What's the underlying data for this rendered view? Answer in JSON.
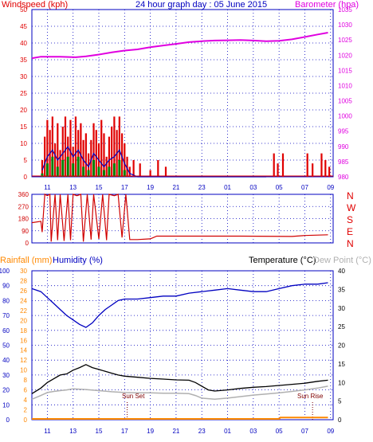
{
  "colors": {
    "wind": "#e00000",
    "gust": "#e00000",
    "avg": "#0000c0",
    "dir": "#d00000",
    "baro": "#e000e0",
    "temp": "#000000",
    "dew": "#b0b0b0",
    "hum": "#0000c0",
    "rain": "#ff8800",
    "frame": "#0000c0",
    "grid": "#0000c0",
    "note": "#800000"
  },
  "header": {
    "windspeed": "Windspeed (kph)",
    "title": "24 hour graph day : 05 June 2015",
    "barometer": "Barometer (hpa)"
  },
  "lower_header": {
    "rainfall": "Rainfall (mm)",
    "humidity": "Humidity (%)",
    "temperature": "Temperature (°C)",
    "dewpoint": "Dew Point (°C)"
  },
  "directions": [
    "N",
    "W",
    "S",
    "E",
    "N"
  ],
  "annotations": {
    "sunset": "Sun Set",
    "sunrise": "Sun Rise"
  },
  "chart_data": [
    {
      "type": "bar",
      "name": "wind",
      "x_ticks": [
        "11",
        "13",
        "15",
        "17",
        "19",
        "21",
        "23",
        "01",
        "03",
        "05",
        "07",
        "09"
      ],
      "y_left_ticks": [
        "0",
        "5",
        "10",
        "15",
        "20",
        "25",
        "30",
        "35",
        "40",
        "45",
        "50"
      ],
      "y_right_ticks": [
        "980",
        "985",
        "990",
        "995",
        "1000",
        "1005",
        "1010",
        "1015",
        "1020",
        "1025",
        "1030",
        "1035"
      ],
      "ylim_left": [
        0,
        50
      ],
      "ylim_right": [
        980,
        1035
      ],
      "gust": [
        [
          10.6,
          5
        ],
        [
          10.8,
          12
        ],
        [
          11,
          17
        ],
        [
          11.2,
          14
        ],
        [
          11.4,
          18
        ],
        [
          11.6,
          10
        ],
        [
          11.8,
          16
        ],
        [
          12,
          8
        ],
        [
          12.2,
          15
        ],
        [
          12.4,
          18
        ],
        [
          12.6,
          12
        ],
        [
          12.8,
          17
        ],
        [
          13,
          9
        ],
        [
          13.2,
          18
        ],
        [
          13.4,
          14
        ],
        [
          13.6,
          16
        ],
        [
          13.8,
          11
        ],
        [
          14,
          13
        ],
        [
          14.2,
          7
        ],
        [
          14.4,
          11
        ],
        [
          14.6,
          16
        ],
        [
          14.8,
          14
        ],
        [
          15,
          10
        ],
        [
          15.2,
          17
        ],
        [
          15.4,
          13
        ],
        [
          15.6,
          6
        ],
        [
          15.8,
          12
        ],
        [
          16,
          15
        ],
        [
          16.2,
          18
        ],
        [
          16.4,
          14
        ],
        [
          16.6,
          18
        ],
        [
          16.8,
          13
        ],
        [
          17,
          10
        ],
        [
          17.2,
          6
        ],
        [
          17.4,
          3
        ],
        [
          17.7,
          5
        ],
        [
          18.2,
          4
        ],
        [
          19,
          2
        ],
        [
          19.6,
          5
        ],
        [
          20.2,
          3
        ],
        [
          28.6,
          7
        ],
        [
          28.9,
          4
        ],
        [
          29.3,
          7
        ],
        [
          31.2,
          7
        ],
        [
          31.6,
          4
        ],
        [
          32.3,
          7
        ],
        [
          32.6,
          5
        ],
        [
          32.9,
          3
        ]
      ],
      "avg": [
        [
          10.6,
          2
        ],
        [
          11,
          6
        ],
        [
          11.4,
          8
        ],
        [
          11.8,
          5
        ],
        [
          12.2,
          7
        ],
        [
          12.6,
          9
        ],
        [
          13,
          6
        ],
        [
          13.4,
          8
        ],
        [
          13.8,
          5
        ],
        [
          14.2,
          3
        ],
        [
          14.6,
          7
        ],
        [
          15,
          5
        ],
        [
          15.4,
          3
        ],
        [
          15.8,
          5
        ],
        [
          16.2,
          6
        ],
        [
          16.6,
          8
        ],
        [
          17,
          4
        ],
        [
          17.4,
          1
        ],
        [
          18,
          0
        ],
        [
          28,
          0
        ]
      ],
      "avg_fill": [
        [
          10.6,
          1
        ],
        [
          11,
          4
        ],
        [
          11.4,
          6
        ],
        [
          11.8,
          3
        ],
        [
          12.2,
          5
        ],
        [
          12.6,
          6
        ],
        [
          13,
          4
        ],
        [
          13.4,
          6
        ],
        [
          13.8,
          3
        ],
        [
          14.2,
          2
        ],
        [
          14.6,
          5
        ],
        [
          15,
          3
        ],
        [
          15.4,
          2
        ],
        [
          15.8,
          3
        ],
        [
          16.2,
          4
        ],
        [
          16.6,
          5
        ],
        [
          17,
          2
        ],
        [
          17.4,
          0
        ]
      ],
      "barometer": [
        [
          9.8,
          1019
        ],
        [
          10.5,
          1019.5
        ],
        [
          12,
          1019.5
        ],
        [
          13.2,
          1019.3
        ],
        [
          14,
          1019.6
        ],
        [
          15,
          1020.2
        ],
        [
          16,
          1020.9
        ],
        [
          17,
          1021.5
        ],
        [
          18,
          1021.9
        ],
        [
          19,
          1022.6
        ],
        [
          20,
          1023.2
        ],
        [
          21,
          1023.7
        ],
        [
          22,
          1024.3
        ],
        [
          23,
          1024.6
        ],
        [
          24,
          1024.8
        ],
        [
          25,
          1024.9
        ],
        [
          26,
          1025
        ],
        [
          27,
          1024.8
        ],
        [
          28,
          1024.6
        ],
        [
          29,
          1024.7
        ],
        [
          30,
          1025.2
        ],
        [
          31,
          1026
        ],
        [
          32,
          1026.8
        ],
        [
          32.8,
          1027.4
        ]
      ]
    },
    {
      "type": "line",
      "name": "direction",
      "y_ticks": [
        "0",
        "90",
        "180",
        "270",
        "360"
      ],
      "ylim": [
        0,
        360
      ],
      "values": [
        [
          9.8,
          150
        ],
        [
          10.5,
          160
        ],
        [
          10.6,
          80
        ],
        [
          10.8,
          360
        ],
        [
          11,
          350
        ],
        [
          11.2,
          360
        ],
        [
          11.3,
          10
        ],
        [
          11.6,
          360
        ],
        [
          11.8,
          20
        ],
        [
          12,
          360
        ],
        [
          12.3,
          15
        ],
        [
          12.6,
          360
        ],
        [
          12.8,
          20
        ],
        [
          13,
          360
        ],
        [
          13.3,
          350
        ],
        [
          13.6,
          360
        ],
        [
          13.8,
          10
        ],
        [
          14.1,
          360
        ],
        [
          14.4,
          25
        ],
        [
          14.6,
          360
        ],
        [
          15,
          30
        ],
        [
          15.3,
          360
        ],
        [
          15.6,
          20
        ],
        [
          15.8,
          360
        ],
        [
          16.2,
          350
        ],
        [
          16.5,
          360
        ],
        [
          16.8,
          40
        ],
        [
          17.1,
          360
        ],
        [
          17.4,
          25
        ],
        [
          18,
          25
        ],
        [
          19,
          30
        ],
        [
          19.5,
          50
        ],
        [
          22,
          50
        ],
        [
          26,
          50
        ],
        [
          30,
          48
        ],
        [
          31,
          55
        ],
        [
          32.8,
          60
        ]
      ]
    },
    {
      "type": "line",
      "name": "temperature-humidity",
      "y_left_ticks": [
        "0",
        "10",
        "20",
        "30",
        "40",
        "50",
        "60",
        "70",
        "80",
        "90",
        "100"
      ],
      "y_rain_ticks": [
        "0",
        "2",
        "4",
        "6",
        "8",
        "10",
        "12",
        "14",
        "16",
        "18",
        "20",
        "22",
        "24",
        "26",
        "28",
        "30"
      ],
      "y_right_ticks": [
        "0",
        "5",
        "10",
        "15",
        "20",
        "25",
        "30",
        "35",
        "40"
      ],
      "ylim_humidity": [
        0,
        100
      ],
      "ylim_temperature": [
        0,
        40
      ],
      "humidity": [
        [
          9.8,
          88
        ],
        [
          10.5,
          86
        ],
        [
          11,
          82
        ],
        [
          11.5,
          78
        ],
        [
          12,
          74
        ],
        [
          12.5,
          70
        ],
        [
          13,
          67
        ],
        [
          13.5,
          64
        ],
        [
          14,
          62
        ],
        [
          14.5,
          65
        ],
        [
          15,
          70
        ],
        [
          15.5,
          74
        ],
        [
          16,
          77
        ],
        [
          16.5,
          80
        ],
        [
          17,
          81
        ],
        [
          18,
          81
        ],
        [
          19,
          82
        ],
        [
          20,
          83
        ],
        [
          21,
          83
        ],
        [
          22,
          85
        ],
        [
          23,
          86
        ],
        [
          24,
          87
        ],
        [
          25,
          88
        ],
        [
          26,
          87
        ],
        [
          27,
          86
        ],
        [
          28,
          86
        ],
        [
          29,
          88
        ],
        [
          30,
          90
        ],
        [
          31,
          91
        ],
        [
          32,
          91
        ],
        [
          32.8,
          92
        ]
      ],
      "temperature": [
        [
          9.8,
          7
        ],
        [
          10.5,
          8.5
        ],
        [
          11,
          10
        ],
        [
          11.5,
          11
        ],
        [
          12,
          12
        ],
        [
          12.5,
          12.3
        ],
        [
          13,
          13.3
        ],
        [
          13.5,
          14
        ],
        [
          14,
          14.8
        ],
        [
          14.5,
          14
        ],
        [
          15,
          13.5
        ],
        [
          15.5,
          13
        ],
        [
          16,
          12.5
        ],
        [
          16.5,
          12
        ],
        [
          17,
          11.7
        ],
        [
          18,
          11.4
        ],
        [
          19,
          11.1
        ],
        [
          20,
          10.9
        ],
        [
          21,
          10.7
        ],
        [
          22,
          10.6
        ],
        [
          22.5,
          10
        ],
        [
          23,
          9
        ],
        [
          23.5,
          8
        ],
        [
          24,
          7.7
        ],
        [
          25,
          8
        ],
        [
          26,
          8.4
        ],
        [
          27,
          8.7
        ],
        [
          28,
          8.9
        ],
        [
          29,
          9.2
        ],
        [
          30,
          9.5
        ],
        [
          31,
          9.8
        ],
        [
          32,
          10.3
        ],
        [
          32.8,
          10.6
        ]
      ],
      "dewpoint": [
        [
          9.8,
          5.5
        ],
        [
          10.5,
          6.5
        ],
        [
          11,
          7.3
        ],
        [
          11.5,
          7.6
        ],
        [
          12,
          7.8
        ],
        [
          12.5,
          8
        ],
        [
          13,
          8.3
        ],
        [
          14,
          8.1
        ],
        [
          15,
          7.8
        ],
        [
          16,
          7.5
        ],
        [
          17,
          7.3
        ],
        [
          18,
          7.2
        ],
        [
          19,
          7.2
        ],
        [
          20,
          7.1
        ],
        [
          21,
          7.1
        ],
        [
          22,
          7
        ],
        [
          22.5,
          6.5
        ],
        [
          23,
          5.8
        ],
        [
          24,
          5.5
        ],
        [
          25,
          5.8
        ],
        [
          26,
          6.2
        ],
        [
          27,
          6.6
        ],
        [
          28,
          6.9
        ],
        [
          29,
          7.2
        ],
        [
          30,
          7.6
        ],
        [
          31,
          8
        ],
        [
          32,
          8.5
        ],
        [
          32.8,
          9
        ]
      ],
      "rainfall": [
        [
          9.8,
          0
        ],
        [
          29,
          0
        ],
        [
          29.1,
          0.3
        ],
        [
          32.8,
          0.3
        ]
      ],
      "sunset_hour": 17.2,
      "sunrise_hour": 31.6
    }
  ]
}
